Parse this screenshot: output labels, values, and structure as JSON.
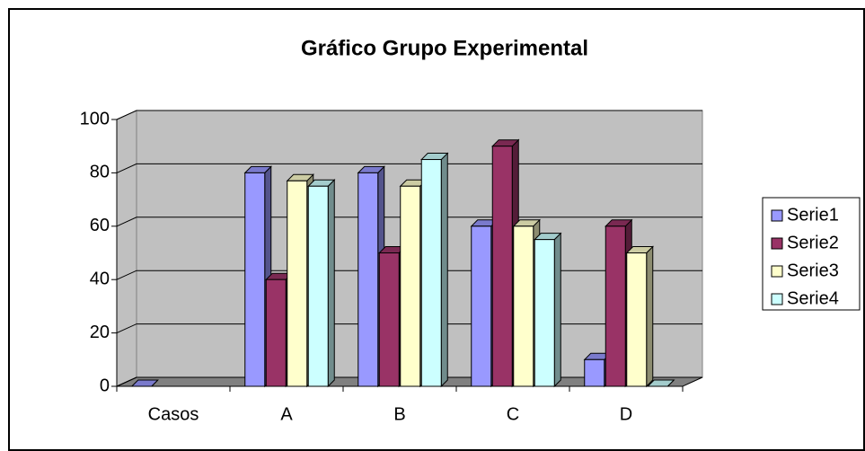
{
  "chart_data": {
    "type": "bar3d",
    "title": "Gráfico Grupo Experimental",
    "categories": [
      "Casos",
      "A",
      "B",
      "C",
      "D"
    ],
    "series": [
      {
        "name": "Serie1",
        "color": "#9999ff",
        "values": [
          0,
          80,
          80,
          60,
          10
        ]
      },
      {
        "name": "Serie2",
        "color": "#993366",
        "values": [
          null,
          40,
          50,
          90,
          60
        ]
      },
      {
        "name": "Serie3",
        "color": "#ffffcc",
        "values": [
          null,
          77,
          75,
          60,
          50
        ]
      },
      {
        "name": "Serie4",
        "color": "#ccffff",
        "values": [
          null,
          75,
          85,
          55,
          0
        ]
      }
    ],
    "ylim": [
      0,
      100
    ],
    "yticks": [
      0,
      20,
      40,
      60,
      80,
      100
    ],
    "grid": true,
    "legend": "right"
  }
}
